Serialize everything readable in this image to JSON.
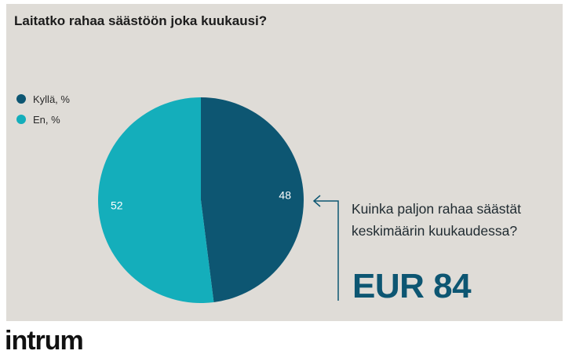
{
  "colors": {
    "background": "#dfdcd7",
    "yes": "#0d5672",
    "no": "#14aebb",
    "accent": "#0d5672"
  },
  "chart_data": {
    "type": "pie",
    "title": "Laitatko rahaa säästöön joka kuukausi?",
    "legend_position": "left",
    "slices": [
      {
        "label": "Kyllä, %",
        "value": 48,
        "color": "#0d5672"
      },
      {
        "label": "En, %",
        "value": 52,
        "color": "#14aebb"
      }
    ]
  },
  "callout": {
    "question_line1": "Kuinka paljon rahaa säästät",
    "question_line2": "keskimäärin kuukaudessa?",
    "amount": "EUR 84"
  },
  "brand": {
    "logo_text": "intrum"
  }
}
